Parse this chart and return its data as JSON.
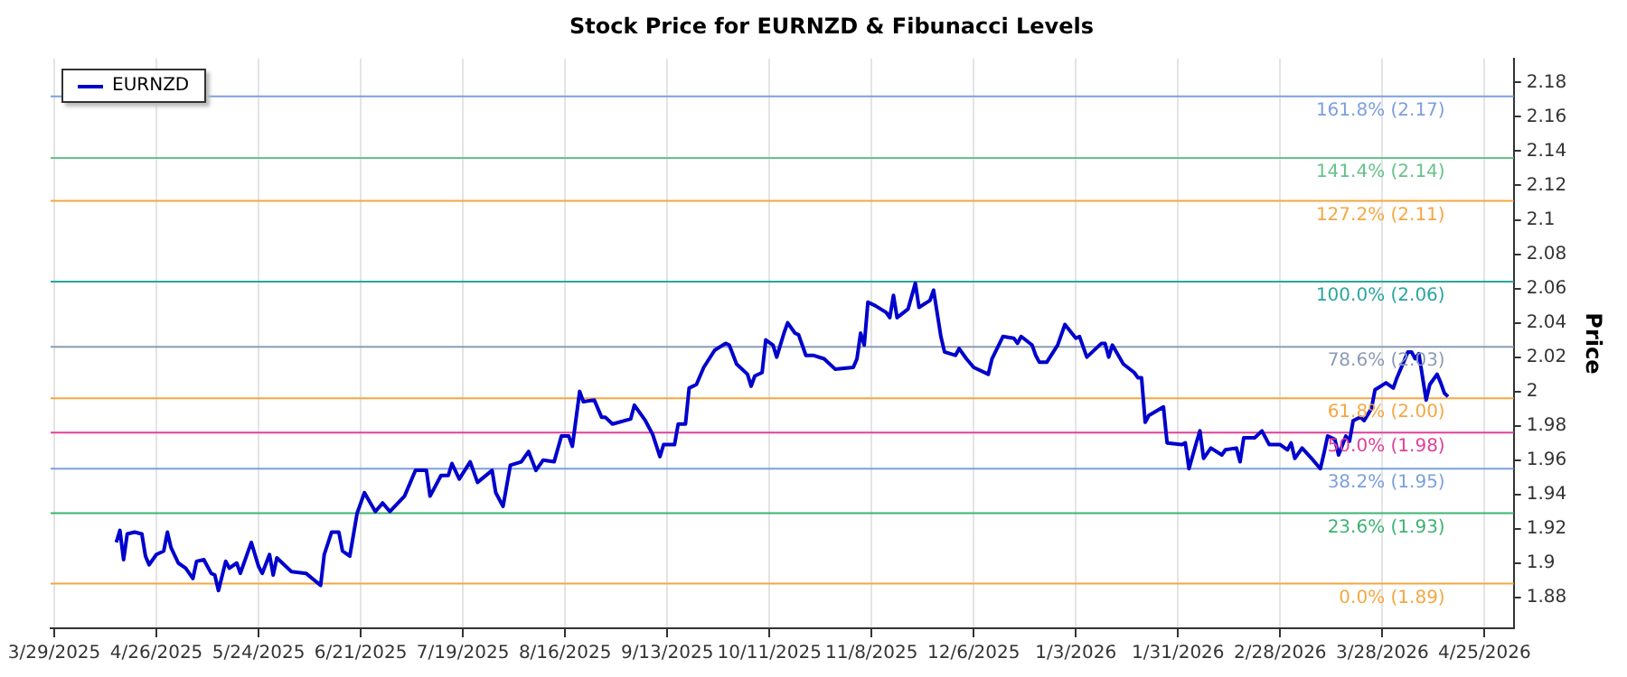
{
  "chart_data": {
    "type": "line",
    "title": "Stock Price for EURNZD & Fibunacci Levels",
    "ylabel": "Price",
    "xlim": [
      "2025-03-28",
      "2026-05-03"
    ],
    "xticks": [
      {
        "value": "2025-03-29",
        "label": "3/29/2025"
      },
      {
        "value": "2025-04-26",
        "label": "4/26/2025"
      },
      {
        "value": "2025-05-24",
        "label": "5/24/2025"
      },
      {
        "value": "2025-06-21",
        "label": "6/21/2025"
      },
      {
        "value": "2025-07-19",
        "label": "7/19/2025"
      },
      {
        "value": "2025-08-16",
        "label": "8/16/2025"
      },
      {
        "value": "2025-09-13",
        "label": "9/13/2025"
      },
      {
        "value": "2025-10-11",
        "label": "10/11/2025"
      },
      {
        "value": "2025-11-08",
        "label": "11/8/2025"
      },
      {
        "value": "2025-12-06",
        "label": "12/6/2025"
      },
      {
        "value": "2026-01-03",
        "label": "1/3/2026"
      },
      {
        "value": "2026-01-31",
        "label": "1/31/2026"
      },
      {
        "value": "2026-02-28",
        "label": "2/28/2026"
      },
      {
        "value": "2026-03-28",
        "label": "3/28/2026"
      },
      {
        "value": "2026-04-25",
        "label": "4/25/2026"
      }
    ],
    "ylim": [
      1.862,
      2.194
    ],
    "yticks": [
      1.88,
      1.9,
      1.92,
      1.94,
      1.96,
      1.98,
      2,
      2.02,
      2.04,
      2.06,
      2.08,
      2.1,
      2.12,
      2.14,
      2.16,
      2.18
    ],
    "grid": "x",
    "legend": "top left",
    "x": [
      "2025-04-15",
      "2025-04-16",
      "2025-04-17",
      "2025-04-18",
      "2025-04-20",
      "2025-04-22",
      "2025-04-23",
      "2025-04-24",
      "2025-04-26",
      "2025-04-28",
      "2025-04-29",
      "2025-04-30",
      "2025-05-02",
      "2025-05-04",
      "2025-05-06",
      "2025-05-07",
      "2025-05-09",
      "2025-05-11",
      "2025-05-12",
      "2025-05-13",
      "2025-05-15",
      "2025-05-16",
      "2025-05-18",
      "2025-05-19",
      "2025-05-22",
      "2025-05-24",
      "2025-05-25",
      "2025-05-27",
      "2025-05-28",
      "2025-05-29",
      "2025-06-02",
      "2025-06-06",
      "2025-06-10",
      "2025-06-11",
      "2025-06-13",
      "2025-06-15",
      "2025-06-16",
      "2025-06-18",
      "2025-06-20",
      "2025-06-22",
      "2025-06-25",
      "2025-06-27",
      "2025-06-29",
      "2025-07-03",
      "2025-07-06",
      "2025-07-09",
      "2025-07-10",
      "2025-07-13",
      "2025-07-15",
      "2025-07-16",
      "2025-07-18",
      "2025-07-21",
      "2025-07-23",
      "2025-07-27",
      "2025-07-28",
      "2025-07-30",
      "2025-08-01",
      "2025-08-04",
      "2025-08-06",
      "2025-08-08",
      "2025-08-10",
      "2025-08-13",
      "2025-08-15",
      "2025-08-17",
      "2025-08-18",
      "2025-08-20",
      "2025-08-21",
      "2025-08-24",
      "2025-08-26",
      "2025-08-27",
      "2025-08-29",
      "2025-09-03",
      "2025-09-04",
      "2025-09-07",
      "2025-09-09",
      "2025-09-11",
      "2025-09-12",
      "2025-09-15",
      "2025-09-16",
      "2025-09-18",
      "2025-09-19",
      "2025-09-21",
      "2025-09-23",
      "2025-09-26",
      "2025-09-29",
      "2025-09-30",
      "2025-10-02",
      "2025-10-05",
      "2025-10-06",
      "2025-10-07",
      "2025-10-09",
      "2025-10-10",
      "2025-10-12",
      "2025-10-13",
      "2025-10-15",
      "2025-10-16",
      "2025-10-18",
      "2025-10-19",
      "2025-10-21",
      "2025-10-23",
      "2025-10-26",
      "2025-10-29",
      "2025-11-03",
      "2025-11-04",
      "2025-11-05",
      "2025-11-06",
      "2025-11-07",
      "2025-11-09",
      "2025-11-12",
      "2025-11-13",
      "2025-11-14",
      "2025-11-15",
      "2025-11-18",
      "2025-11-20",
      "2025-11-21",
      "2025-11-24",
      "2025-11-25",
      "2025-11-27",
      "2025-11-28",
      "2025-12-01",
      "2025-12-02",
      "2025-12-04",
      "2025-12-06",
      "2025-12-10",
      "2025-12-11",
      "2025-12-14",
      "2025-12-17",
      "2025-12-18",
      "2025-12-19",
      "2025-12-22",
      "2025-12-23",
      "2025-12-24",
      "2025-12-26",
      "2025-12-29",
      "2025-12-31",
      "2026-01-03",
      "2026-01-04",
      "2026-01-06",
      "2026-01-10",
      "2026-01-11",
      "2026-01-12",
      "2026-01-13",
      "2026-01-16",
      "2026-01-19",
      "2026-01-20",
      "2026-01-21",
      "2026-01-22",
      "2026-01-23",
      "2026-01-27",
      "2026-01-28",
      "2026-02-01",
      "2026-02-02",
      "2026-02-03",
      "2026-02-05",
      "2026-02-06",
      "2026-02-07",
      "2026-02-09",
      "2026-02-12",
      "2026-02-13",
      "2026-02-16",
      "2026-02-17",
      "2026-02-18",
      "2026-02-21",
      "2026-02-23",
      "2026-02-25",
      "2026-02-28",
      "2026-03-02",
      "2026-03-03",
      "2026-03-04",
      "2026-03-06",
      "2026-03-09",
      "2026-03-11",
      "2026-03-12",
      "2026-03-13",
      "2026-03-15",
      "2026-03-16",
      "2026-03-18",
      "2026-03-19",
      "2026-03-20",
      "2026-03-22",
      "2026-03-23",
      "2026-03-25",
      "2026-03-26",
      "2026-03-29",
      "2026-03-31",
      "2026-04-01",
      "2026-04-04",
      "2026-04-05",
      "2026-04-06",
      "2026-04-07",
      "2026-04-09",
      "2026-04-10",
      "2026-04-12",
      "2026-04-13",
      "2026-04-14",
      "2026-04-15"
    ],
    "series": [
      {
        "name": "EURNZD",
        "color": "#0000cd",
        "values": [
          1.912,
          1.919,
          1.902,
          1.917,
          1.918,
          1.917,
          1.904,
          1.899,
          1.905,
          1.907,
          1.918,
          1.909,
          1.9,
          1.897,
          1.891,
          1.901,
          1.902,
          1.894,
          1.893,
          1.884,
          1.901,
          1.897,
          1.9,
          1.894,
          1.912,
          1.898,
          1.894,
          1.905,
          1.893,
          1.903,
          1.895,
          1.894,
          1.887,
          1.905,
          1.918,
          1.918,
          1.907,
          1.904,
          1.929,
          1.941,
          1.93,
          1.935,
          1.93,
          1.939,
          1.954,
          1.954,
          1.939,
          1.951,
          1.951,
          1.958,
          1.949,
          1.959,
          1.947,
          1.954,
          1.941,
          1.933,
          1.957,
          1.959,
          1.965,
          1.954,
          1.96,
          1.959,
          1.974,
          1.974,
          1.968,
          2.0,
          1.994,
          1.995,
          1.985,
          1.985,
          1.981,
          1.984,
          1.992,
          1.983,
          1.975,
          1.962,
          1.969,
          1.969,
          1.981,
          1.981,
          2.002,
          2.004,
          2.014,
          2.024,
          2.028,
          2.027,
          2.016,
          2.01,
          2.003,
          2.009,
          2.011,
          2.03,
          2.027,
          2.02,
          2.034,
          2.04,
          2.034,
          2.033,
          2.021,
          2.021,
          2.019,
          2.013,
          2.014,
          2.019,
          2.034,
          2.027,
          2.052,
          2.05,
          2.046,
          2.043,
          2.056,
          2.043,
          2.048,
          2.063,
          2.049,
          2.053,
          2.059,
          2.032,
          2.023,
          2.021,
          2.025,
          2.019,
          2.014,
          2.01,
          2.019,
          2.032,
          2.031,
          2.028,
          2.032,
          2.027,
          2.021,
          2.017,
          2.017,
          2.027,
          2.039,
          2.031,
          2.032,
          2.02,
          2.028,
          2.028,
          2.02,
          2.027,
          2.016,
          2.011,
          2.008,
          2.008,
          1.982,
          1.986,
          1.991,
          1.97,
          1.969,
          1.97,
          1.955,
          1.97,
          1.977,
          1.961,
          1.967,
          1.963,
          1.966,
          1.967,
          1.959,
          1.973,
          1.973,
          1.977,
          1.969,
          1.969,
          1.966,
          1.97,
          1.961,
          1.967,
          1.96,
          1.955,
          1.964,
          1.974,
          1.972,
          1.963,
          1.974,
          1.971,
          1.983,
          1.985,
          1.983,
          1.99,
          2.001,
          2.005,
          2.002,
          2.008,
          2.023,
          2.023,
          2.019,
          2.022,
          1.995,
          2.004,
          2.01,
          2.005,
          1.999,
          1.997
        ]
      }
    ],
    "ref_lines": [
      {
        "axis": "y",
        "value": 2.172,
        "label": "161.8% (2.17)",
        "color": "#7b9fe0"
      },
      {
        "axis": "y",
        "value": 2.136,
        "label": "141.4% (2.14)",
        "color": "#66c28a"
      },
      {
        "axis": "y",
        "value": 2.111,
        "label": "127.2% (2.11)",
        "color": "#f5a742"
      },
      {
        "axis": "y",
        "value": 2.064,
        "label": "100.0% (2.06)",
        "color": "#2aa5a0"
      },
      {
        "axis": "y",
        "value": 2.026,
        "label": "78.6% (2.03)",
        "color": "#8c9bb5"
      },
      {
        "axis": "y",
        "value": 1.996,
        "label": "61.8% (2.00)",
        "color": "#f5a742"
      },
      {
        "axis": "y",
        "value": 1.976,
        "label": "50.0% (1.98)",
        "color": "#e0409a"
      },
      {
        "axis": "y",
        "value": 1.955,
        "label": "38.2% (1.95)",
        "color": "#7b9fe0"
      },
      {
        "axis": "y",
        "value": 1.929,
        "label": "23.6% (1.93)",
        "color": "#3cb371"
      },
      {
        "axis": "y",
        "value": 1.888,
        "label": "0.0% (1.89)",
        "color": "#f5a742"
      }
    ]
  }
}
